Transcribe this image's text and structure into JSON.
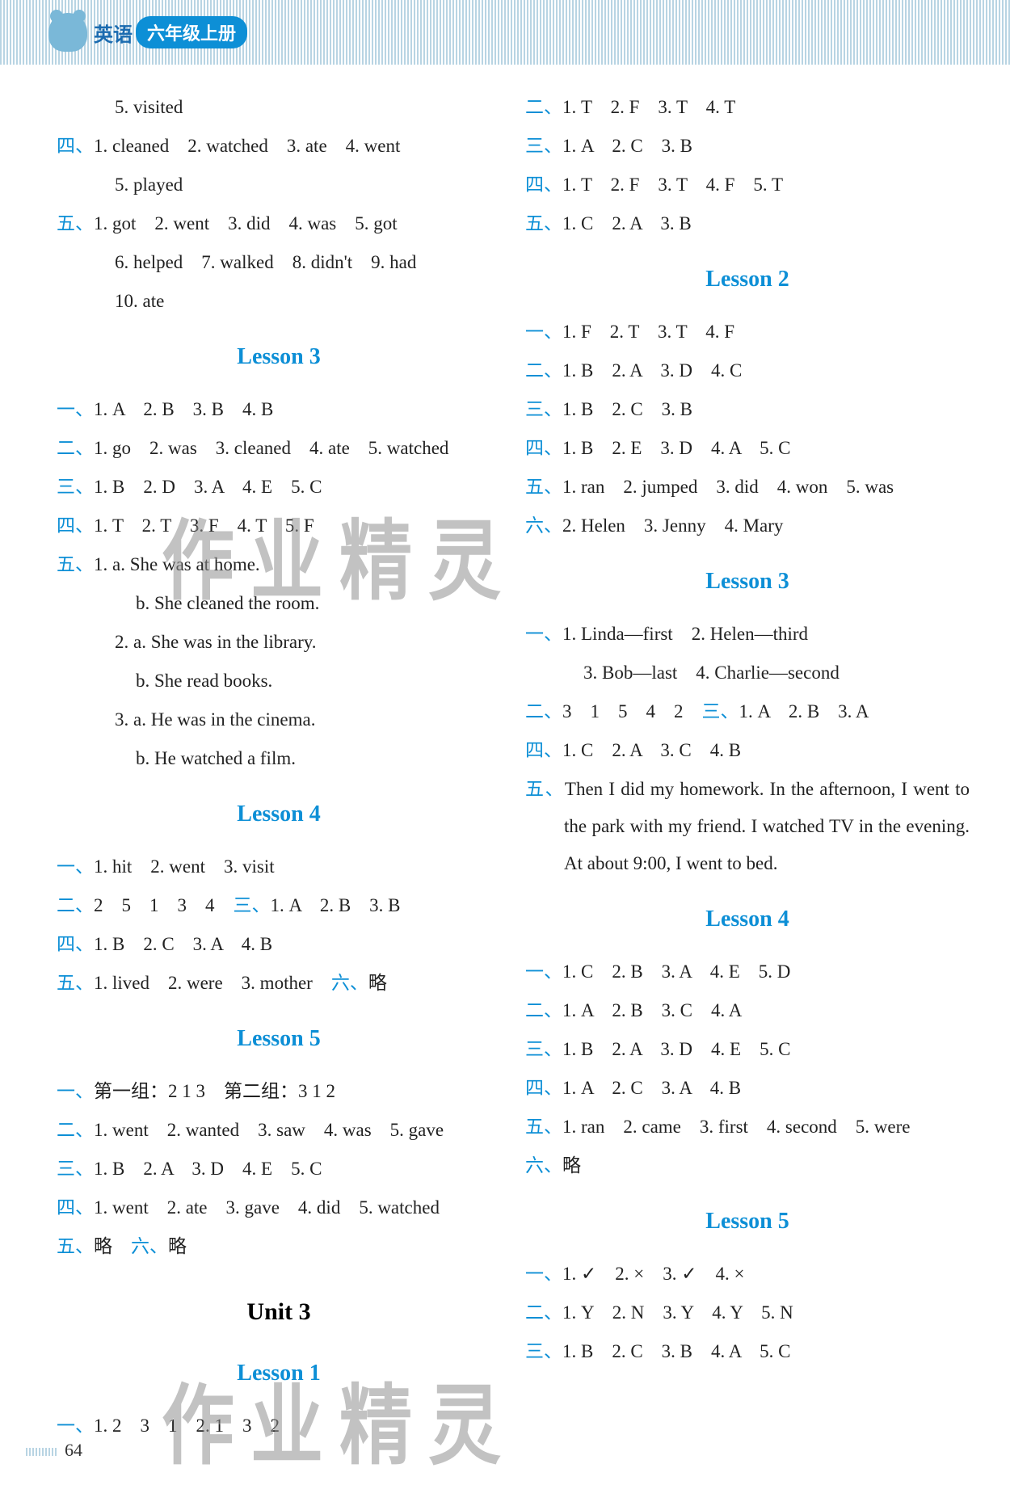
{
  "header": {
    "subject": "英语",
    "grade": "六年级上册"
  },
  "watermark_text": "作业精灵",
  "page_number": "64",
  "left_column": {
    "pre_lines": [
      {
        "indent": "indent3",
        "text": "5. visited"
      },
      {
        "label": "四、",
        "text": "1. cleaned　2. watched　3. ate　4. went"
      },
      {
        "indent": "indent3",
        "text": "5. played"
      },
      {
        "label": "五、",
        "text": "1. got　2. went　3. did　4. was　5. got"
      },
      {
        "indent": "indent3",
        "text": "6. helped　7. walked　8. didn't　9. had"
      },
      {
        "indent": "indent3",
        "text": "10. ate"
      }
    ],
    "lesson3_heading": "Lesson 3",
    "lesson3_lines": [
      {
        "label": "一、",
        "text": "1. A　2. B　3. B　4. B"
      },
      {
        "label": "二、",
        "text": "1. go　2. was　3. cleaned　4. ate　5. watched"
      },
      {
        "label": "三、",
        "text": "1. B　2. D　3. A　4. E　5. C"
      },
      {
        "label": "四、",
        "text": "1. T　2. T　3. F　4. T　5. F"
      },
      {
        "label": "五、",
        "text": "1. a. She was at home."
      },
      {
        "indent": "indent2",
        "text": "b. She cleaned the room."
      },
      {
        "indent": "indent3",
        "text": "2. a. She was in the library."
      },
      {
        "indent": "indent2",
        "text": "b. She read books."
      },
      {
        "indent": "indent3",
        "text": "3. a. He was in the cinema."
      },
      {
        "indent": "indent2",
        "text": "b. He watched a film."
      }
    ],
    "lesson4_heading": "Lesson 4",
    "lesson4_lines": [
      {
        "label": "一、",
        "text": "1. hit　2. went　3. visit"
      },
      {
        "label": "二、",
        "text": "2　5　1　3　4　",
        "label2": "三、",
        "text2": "1. A　2. B　3. B"
      },
      {
        "label": "四、",
        "text": "1. B　2. C　3. A　4. B"
      },
      {
        "label": "五、",
        "text": "1. lived　2. were　3. mother　",
        "label2": "六、",
        "text2": "略"
      }
    ],
    "lesson5_heading": "Lesson 5",
    "lesson5_lines": [
      {
        "label": "一、",
        "text": "第一组：2 1 3　第二组：3 1 2"
      },
      {
        "label": "二、",
        "text": "1. went　2. wanted　3. saw　4. was　5. gave"
      },
      {
        "label": "三、",
        "text": "1. B　2. A　3. D　4. E　5. C"
      },
      {
        "label": "四、",
        "text": "1. went　2. ate　3. gave　4. did　5. watched"
      },
      {
        "label": "五、",
        "text": "略　",
        "label2": "六、",
        "text2": "略"
      }
    ],
    "unit3_heading": "Unit 3",
    "lesson1_heading": "Lesson 1",
    "lesson1_lines": [
      {
        "label": "一、",
        "text": "1. 2　3　1　2. 1　3　2"
      }
    ]
  },
  "right_column": {
    "pre_lines": [
      {
        "label": "二、",
        "text": "1. T　2. F　3. T　4. T"
      },
      {
        "label": "三、",
        "text": "1. A　2. C　3. B"
      },
      {
        "label": "四、",
        "text": "1. T　2. F　3. T　4. F　5. T"
      },
      {
        "label": "五、",
        "text": "1. C　2. A　3. B"
      }
    ],
    "lesson2_heading": "Lesson 2",
    "lesson2_lines": [
      {
        "label": "一、",
        "text": "1. F　2. T　3. T　4. F"
      },
      {
        "label": "二、",
        "text": "1. B　2. A　3. D　4. C"
      },
      {
        "label": "三、",
        "text": "1. B　2. C　3. B"
      },
      {
        "label": "四、",
        "text": "1. B　2. E　3. D　4. A　5. C"
      },
      {
        "label": "五、",
        "text": "1. ran　2. jumped　3. did　4. won　5. was"
      },
      {
        "label": "六、",
        "text": "2. Helen　3. Jenny　4. Mary"
      }
    ],
    "lesson3_heading": "Lesson 3",
    "lesson3_lines": [
      {
        "label": "一、",
        "text": "1. Linda—first　2. Helen—third"
      },
      {
        "indent": "indent3",
        "text": "3. Bob—last　4. Charlie—second"
      },
      {
        "label": "二、",
        "text": "3　1　5　4　2　",
        "label2": "三、",
        "text2": "1. A　2. B　3. A"
      },
      {
        "label": "四、",
        "text": "1. C　2. A　3. C　4. B"
      },
      {
        "label": "五、",
        "text": "Then I did my homework. In the afternoon, I went to the park with my friend. I watched TV in the evening. At about 9:00, I went to bed.",
        "justify": true
      }
    ],
    "lesson4_heading": "Lesson 4",
    "lesson4_lines": [
      {
        "label": "一、",
        "text": "1. C　2. B　3. A　4. E　5. D"
      },
      {
        "label": "二、",
        "text": "1. A　2. B　3. C　4. A"
      },
      {
        "label": "三、",
        "text": "1. B　2. A　3. D　4. E　5. C"
      },
      {
        "label": "四、",
        "text": "1. A　2. C　3. A　4. B"
      },
      {
        "label": "五、",
        "text": "1. ran　2. came　3. first　4. second　5. were"
      },
      {
        "label": "六、",
        "text": "略"
      }
    ],
    "lesson5_heading": "Lesson 5",
    "lesson5_lines": [
      {
        "label": "一、",
        "text": "1. ✓　2. ×　3. ✓　4. ×"
      },
      {
        "label": "二、",
        "text": "1. Y　2. N　3. Y　4. Y　5. N"
      },
      {
        "label": "三、",
        "text": "1. B　2. C　3. B　4. A　5. C"
      }
    ]
  }
}
